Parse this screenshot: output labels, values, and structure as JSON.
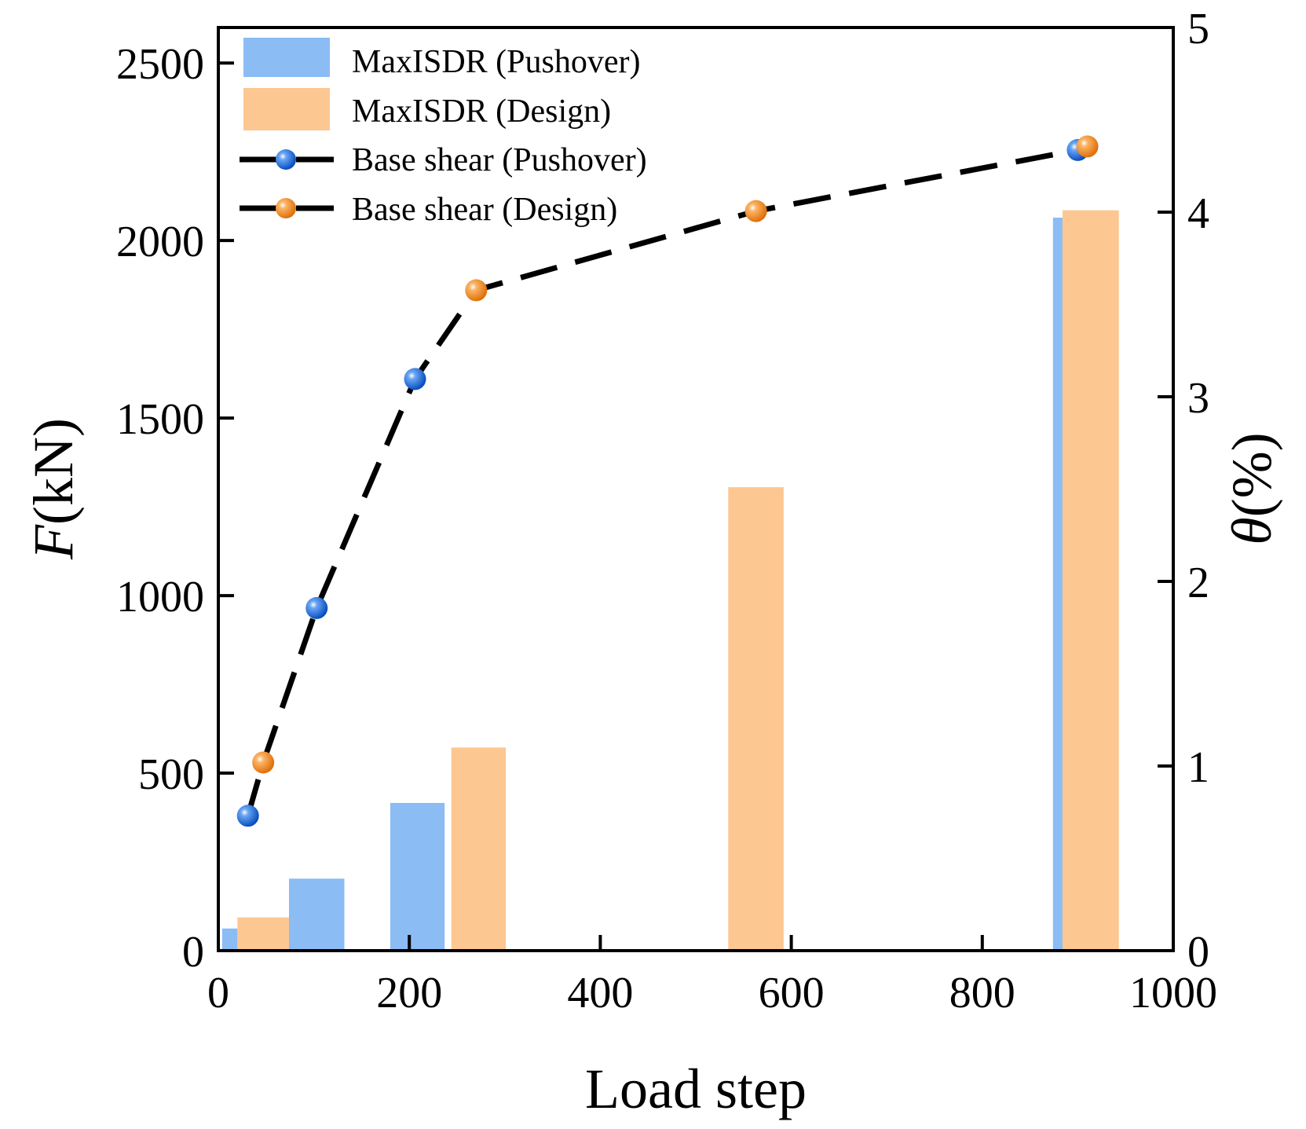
{
  "chart_data": {
    "type": "bar+line",
    "xlabel": "Load step",
    "ylabel_italic": "F",
    "ylabel_rest": "(kN)",
    "y2label_italic": "θ",
    "y2label_rest": "(%)",
    "xlim": [
      0,
      1000
    ],
    "ylim": [
      0,
      2600
    ],
    "y2lim": [
      0,
      5
    ],
    "x_ticks": [
      0,
      200,
      400,
      600,
      800,
      1000
    ],
    "x_tick_labels": [
      "0",
      "200",
      "400",
      "600",
      "800",
      "1000"
    ],
    "y_ticks": [
      0,
      500,
      1000,
      1500,
      2000,
      2500
    ],
    "y_tick_labels": [
      "0",
      "500",
      "1000",
      "1500",
      "2000",
      "2500"
    ],
    "y2_ticks": [
      0,
      1,
      2,
      3,
      4,
      5
    ],
    "y2_tick_labels": [
      "0",
      "1",
      "2",
      "3",
      "4",
      "5"
    ],
    "bar_series": [
      {
        "name": "MaxISDR (Pushover)",
        "color": "#8bbcf4",
        "axis": "right",
        "bars": [
          {
            "x_start": 4,
            "x_end": 20,
            "value": 0.12
          },
          {
            "x_start": 74,
            "x_end": 132,
            "value": 0.39
          },
          {
            "x_start": 180,
            "x_end": 237,
            "value": 0.8
          },
          {
            "x_start": 874,
            "x_end": 884,
            "value": 3.97
          }
        ]
      },
      {
        "name": "MaxISDR (Design)",
        "color": "#fdc791",
        "axis": "right",
        "bars": [
          {
            "x_start": 20,
            "x_end": 74,
            "value": 0.18
          },
          {
            "x_start": 244,
            "x_end": 301,
            "value": 1.1
          },
          {
            "x_start": 534,
            "x_end": 592,
            "value": 2.51
          },
          {
            "x_start": 884,
            "x_end": 943,
            "value": 4.01
          }
        ]
      }
    ],
    "line_series": [
      {
        "name": "Base shear (Pushover)",
        "marker_color": "#1f6fe0",
        "axis": "left",
        "points": [
          [
            31,
            380
          ],
          [
            103,
            965
          ],
          [
            206,
            1610
          ],
          [
            900,
            2255
          ]
        ]
      },
      {
        "name": "Base shear (Design)",
        "marker_color": "#f5891f",
        "axis": "left",
        "points": [
          [
            47,
            530
          ],
          [
            270,
            1860
          ],
          [
            563,
            2083
          ],
          [
            910,
            2265
          ]
        ]
      }
    ],
    "dashed_line": {
      "color": "#000000",
      "points": [
        [
          31,
          380
        ],
        [
          47,
          530
        ],
        [
          103,
          965
        ],
        [
          206,
          1610
        ],
        [
          270,
          1860
        ],
        [
          563,
          2083
        ],
        [
          900,
          2255
        ],
        [
          910,
          2265
        ]
      ]
    },
    "legend": {
      "placement": "top-left",
      "entries": [
        {
          "label": "MaxISDR (Pushover)",
          "kind": "bar",
          "color": "#8bbcf4"
        },
        {
          "label": "MaxISDR (Design)",
          "kind": "bar",
          "color": "#fdc791"
        },
        {
          "label": "Base shear (Pushover)",
          "kind": "line",
          "color": "#1f6fe0"
        },
        {
          "label": "Base shear (Design)",
          "kind": "line",
          "color": "#f5891f"
        }
      ]
    }
  }
}
